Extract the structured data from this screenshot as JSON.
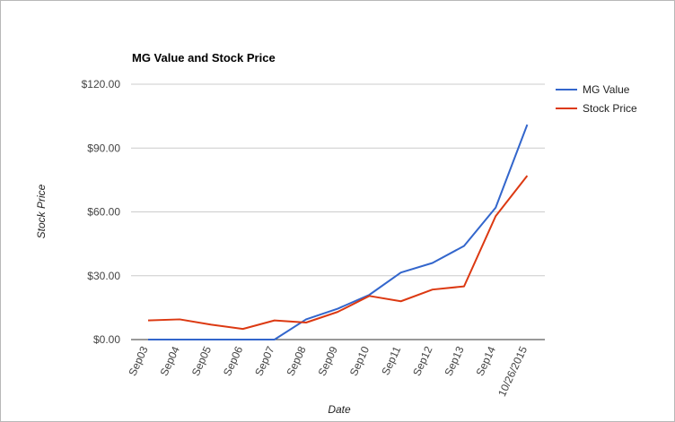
{
  "chart_data": {
    "type": "line",
    "title": "MG Value and Stock Price",
    "xlabel": "Date",
    "ylabel": "Stock Price",
    "categories": [
      "Sep03",
      "Sep04",
      "Sep05",
      "Sep06",
      "Sep07",
      "Sep08",
      "Sep09",
      "Sep10",
      "Sep11",
      "Sep12",
      "Sep13",
      "Sep14",
      "10/26/2015"
    ],
    "y_ticks": [
      "$0.00",
      "$30.00",
      "$60.00",
      "$90.00",
      "$120.00"
    ],
    "ylim": [
      0,
      120
    ],
    "grid": true,
    "legend_position": "right",
    "series": [
      {
        "name": "MG Value",
        "color": "#3366cc",
        "values": [
          0,
          0,
          0,
          0,
          0,
          9.5,
          14.5,
          21,
          31.5,
          36,
          44,
          62,
          101
        ]
      },
      {
        "name": "Stock Price",
        "color": "#dc3912",
        "values": [
          9,
          9.5,
          7,
          5,
          9,
          8,
          13,
          20.5,
          18,
          23.5,
          25,
          58,
          77
        ]
      }
    ]
  }
}
